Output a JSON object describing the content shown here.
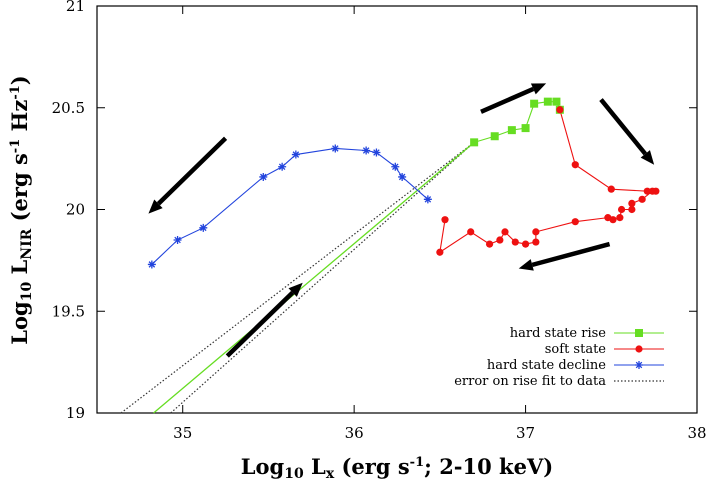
{
  "chart_data": {
    "type": "scatter",
    "title": "",
    "xlabel": {
      "base": "Log",
      "sub": "10",
      "main": " L",
      "msub": "x",
      "rest": " (erg s",
      "sup": "-1",
      "tail": "; 2-10 keV)"
    },
    "ylabel": {
      "base": "Log",
      "sub": "10",
      "main": " L",
      "msub": "NIR",
      "rest": " (erg s",
      "sup1": "-1",
      "mid": " Hz",
      "sup2": "-1",
      "tail": ")"
    },
    "xlim": [
      34.5,
      38
    ],
    "ylim": [
      19,
      21
    ],
    "xticks": [
      "35",
      "36",
      "37",
      "38"
    ],
    "yticks": [
      "19",
      "19.5",
      "20",
      "20.5",
      "21"
    ],
    "legend_position": "bottom-right",
    "series": [
      {
        "name": "hard state rise",
        "color": "#66dd22",
        "marker": "square",
        "x": [
          36.7,
          36.82,
          36.92,
          37.0,
          37.05,
          37.13,
          37.18,
          37.2
        ],
        "y": [
          20.33,
          20.36,
          20.39,
          20.4,
          20.52,
          20.53,
          20.53,
          20.49
        ]
      },
      {
        "name": "soft state",
        "color": "#ee1111",
        "marker": "circle",
        "x": [
          37.2,
          37.29,
          37.5,
          37.71,
          37.76,
          37.74,
          37.68,
          37.62,
          37.62,
          37.56,
          37.55,
          37.51,
          37.48,
          37.29,
          37.06,
          37.06,
          37.0,
          36.94,
          36.88,
          36.85,
          36.79,
          36.68,
          36.5,
          36.53
        ],
        "y": [
          20.49,
          20.22,
          20.1,
          20.09,
          20.09,
          20.09,
          20.05,
          20.03,
          20.0,
          20.0,
          19.96,
          19.95,
          19.96,
          19.94,
          19.89,
          19.84,
          19.83,
          19.84,
          19.89,
          19.85,
          19.83,
          19.89,
          19.79,
          19.95
        ]
      },
      {
        "name": "hard state decline",
        "color": "#2244dd",
        "marker": "star",
        "x": [
          36.43,
          36.28,
          36.24,
          36.13,
          36.07,
          35.89,
          35.66,
          35.58,
          35.47,
          35.12,
          34.97,
          34.82
        ],
        "y": [
          20.05,
          20.16,
          20.21,
          20.28,
          20.29,
          20.3,
          20.27,
          20.21,
          20.16,
          19.91,
          19.85,
          19.73
        ]
      },
      {
        "name": "error on rise fit to data",
        "color": "#333333",
        "marker": "none",
        "style": "dotted"
      }
    ],
    "fit_lines": {
      "central": {
        "color": "#66dd22",
        "x": [
          34.83,
          36.7
        ],
        "y": [
          19.0,
          20.33
        ]
      },
      "lower_bound": {
        "color": "#333333",
        "x": [
          34.93,
          36.7
        ],
        "y": [
          19.0,
          20.33
        ]
      },
      "upper_bound": {
        "color": "#333333",
        "x": [
          34.64,
          36.7
        ],
        "y": [
          19.0,
          20.33
        ]
      }
    },
    "annotations": [
      {
        "type": "arrow",
        "from": [
          35.25,
          20.35
        ],
        "to": [
          34.8,
          19.98
        ]
      },
      {
        "type": "arrow",
        "from": [
          35.26,
          19.28
        ],
        "to": [
          35.7,
          19.64
        ]
      },
      {
        "type": "arrow",
        "from": [
          36.74,
          20.48
        ],
        "to": [
          37.12,
          20.62
        ]
      },
      {
        "type": "arrow",
        "from": [
          37.44,
          20.54
        ],
        "to": [
          37.75,
          20.22
        ]
      },
      {
        "type": "arrow",
        "from": [
          37.49,
          19.83
        ],
        "to": [
          36.96,
          19.71
        ]
      }
    ]
  }
}
